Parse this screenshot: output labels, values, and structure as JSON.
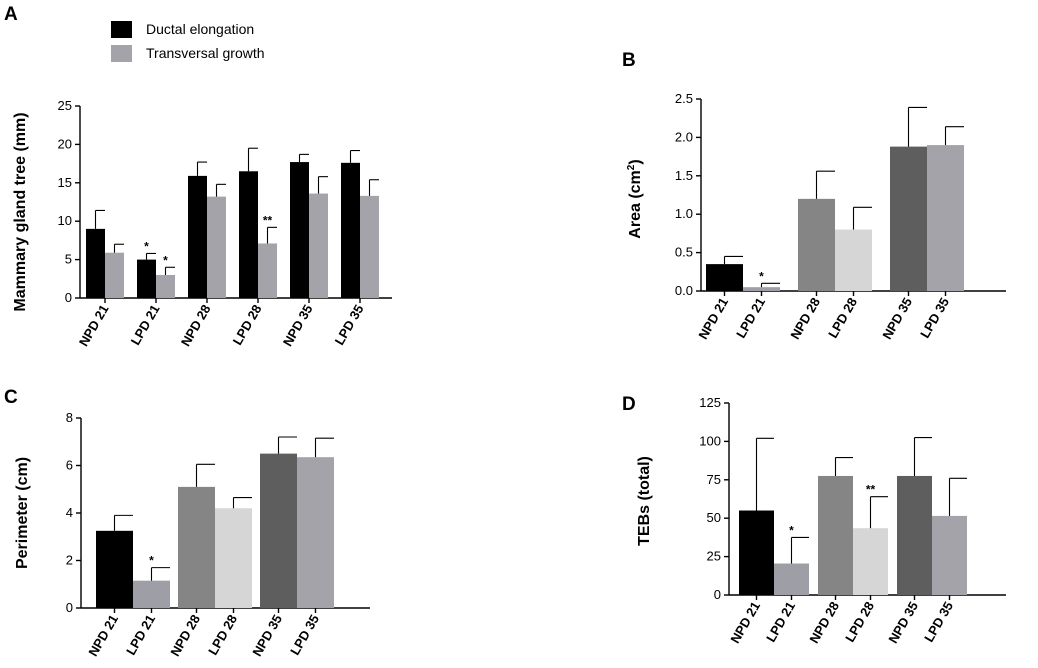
{
  "legend": {
    "items": [
      {
        "label": "Ductal elongation",
        "color": "#000000"
      },
      {
        "label": "Transversal growth",
        "color": "#a3a3a9"
      }
    ]
  },
  "chart_data": [
    {
      "panel": "A",
      "type": "bar",
      "ylabel": "Mammary gland tree (mm)",
      "ylim": [
        0,
        25
      ],
      "yticks": [
        0,
        5,
        10,
        15,
        20,
        25
      ],
      "categories": [
        "NPD 21",
        "LPD 21",
        "NPD 28",
        "LPD 28",
        "NPD 35",
        "LPD 35"
      ],
      "series": [
        {
          "name": "Ductal elongation",
          "color": "#000000",
          "values": [
            9.0,
            5.0,
            15.9,
            16.5,
            17.7,
            17.6
          ],
          "errors": [
            2.4,
            0.8,
            1.8,
            3.0,
            1.0,
            1.6
          ],
          "annotations": [
            "",
            "*",
            "",
            "",
            "",
            ""
          ]
        },
        {
          "name": "Transversal growth",
          "color": "#a3a3a9",
          "values": [
            5.9,
            3.0,
            13.2,
            7.1,
            13.6,
            13.3
          ],
          "errors": [
            1.1,
            1.0,
            1.6,
            2.1,
            2.2,
            2.1
          ],
          "annotations": [
            "",
            "*",
            "",
            "**",
            "",
            ""
          ]
        }
      ]
    },
    {
      "panel": "B",
      "type": "bar",
      "ylabel": "Area (cm",
      "ylabel_sup": "2",
      "ylabel_tail": ")",
      "ylim": [
        0,
        2.5
      ],
      "yticks": [
        "0.0",
        "0.5",
        "1.0",
        "1.5",
        "2.0",
        "2.5"
      ],
      "categories": [
        "NPD 21",
        "LPD 21",
        "NPD 28",
        "LPD 28",
        "NPD 35",
        "LPD 35"
      ],
      "colors": [
        "#000000",
        "#9e9ea6",
        "#858585",
        "#d6d6d6",
        "#5e5e5e",
        "#a3a3a9"
      ],
      "values": [
        0.35,
        0.05,
        1.2,
        0.8,
        1.88,
        1.9
      ],
      "errors": [
        0.1,
        0.05,
        0.36,
        0.29,
        0.51,
        0.24
      ],
      "annotations": [
        "",
        "*",
        "",
        "",
        "",
        ""
      ]
    },
    {
      "panel": "C",
      "type": "bar",
      "ylabel": "Perimeter (cm)",
      "ylim": [
        0,
        8
      ],
      "yticks": [
        0,
        2,
        4,
        6,
        8
      ],
      "categories": [
        "NPD 21",
        "LPD 21",
        "NPD 28",
        "LPD 28",
        "NPD 35",
        "LPD 35"
      ],
      "colors": [
        "#000000",
        "#9e9ea6",
        "#858585",
        "#d6d6d6",
        "#5e5e5e",
        "#a3a3a9"
      ],
      "values": [
        3.25,
        1.15,
        5.1,
        4.2,
        6.5,
        6.35
      ],
      "errors": [
        0.65,
        0.55,
        0.95,
        0.45,
        0.7,
        0.8
      ],
      "annotations": [
        "",
        "*",
        "",
        "",
        "",
        ""
      ]
    },
    {
      "panel": "D",
      "type": "bar",
      "ylabel": "TEBs (total)",
      "ylim": [
        0,
        125
      ],
      "yticks": [
        0,
        25,
        50,
        75,
        100,
        125
      ],
      "categories": [
        "NPD 21",
        "LPD 21",
        "NPD 28",
        "LPD 28",
        "NPD 35",
        "LPD 35"
      ],
      "colors": [
        "#000000",
        "#9e9ea6",
        "#858585",
        "#d6d6d6",
        "#5e5e5e",
        "#a3a3a9"
      ],
      "values": [
        55,
        20.5,
        77.5,
        43.5,
        77.5,
        51.5
      ],
      "errors": [
        47,
        17,
        12,
        20.5,
        25,
        24.5
      ],
      "annotations": [
        "",
        "*",
        "",
        "**",
        "",
        ""
      ]
    }
  ]
}
